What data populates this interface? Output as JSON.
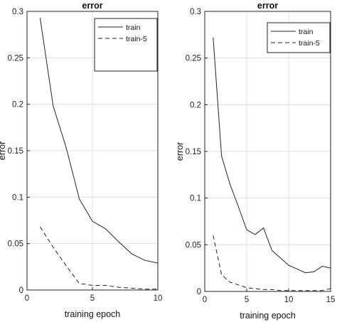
{
  "chart_data": [
    {
      "type": "line",
      "title": "error",
      "xlabel": "training epoch",
      "ylabel": "error",
      "xlim": [
        0,
        10
      ],
      "ylim": [
        0,
        0.3
      ],
      "xticks": [
        0,
        5,
        10
      ],
      "yticks": [
        0,
        0.05,
        0.1,
        0.15,
        0.2,
        0.25,
        0.3
      ],
      "ytick_labels": [
        "0",
        "0.05",
        "0.1",
        "0.15",
        "0.2",
        "0.25",
        "0.3"
      ],
      "grid": true,
      "legend_position": "top-right",
      "series": [
        {
          "name": "train",
          "style": "solid",
          "color": "#222222",
          "x": [
            1,
            2,
            3,
            4,
            5,
            6,
            7,
            8,
            9,
            10
          ],
          "y": [
            0.293,
            0.198,
            0.153,
            0.098,
            0.074,
            0.066,
            0.052,
            0.039,
            0.032,
            0.029
          ]
        },
        {
          "name": "train-5",
          "style": "dashed",
          "color": "#222222",
          "x": [
            1,
            2,
            3,
            4,
            5,
            6,
            7,
            8,
            9,
            10
          ],
          "y": [
            0.068,
            0.046,
            0.026,
            0.007,
            0.005,
            0.005,
            0.003,
            0.002,
            0.001,
            0.001
          ]
        }
      ]
    },
    {
      "type": "line",
      "title": "error",
      "xlabel": "training epoch",
      "ylabel": "error",
      "xlim": [
        0,
        15
      ],
      "ylim": [
        0,
        0.3
      ],
      "xticks": [
        0,
        5,
        10,
        15
      ],
      "yticks": [
        0,
        0.05,
        0.1,
        0.15,
        0.2,
        0.25,
        0.3
      ],
      "ytick_labels": [
        "0",
        "0.05",
        "0.1",
        "0.15",
        "0.2",
        "0.25",
        "0.3"
      ],
      "grid": true,
      "legend_position": "top-right",
      "series": [
        {
          "name": "train",
          "style": "solid",
          "color": "#222222",
          "x": [
            1,
            2,
            3,
            4,
            5,
            6,
            7,
            8,
            9,
            10,
            11,
            12,
            13,
            14,
            15
          ],
          "y": [
            0.272,
            0.145,
            0.115,
            0.091,
            0.066,
            0.061,
            0.068,
            0.044,
            0.036,
            0.028,
            0.024,
            0.02,
            0.021,
            0.027,
            0.025
          ]
        },
        {
          "name": "train-5",
          "style": "dashed",
          "color": "#222222",
          "x": [
            1,
            2,
            3,
            4,
            5,
            6,
            7,
            8,
            9,
            10,
            11,
            12,
            13,
            14,
            15
          ],
          "y": [
            0.06,
            0.018,
            0.01,
            0.007,
            0.004,
            0.003,
            0.002,
            0.002,
            0.001,
            0.001,
            0.001,
            0.001,
            0.001,
            0.001,
            0.003
          ]
        }
      ]
    }
  ]
}
